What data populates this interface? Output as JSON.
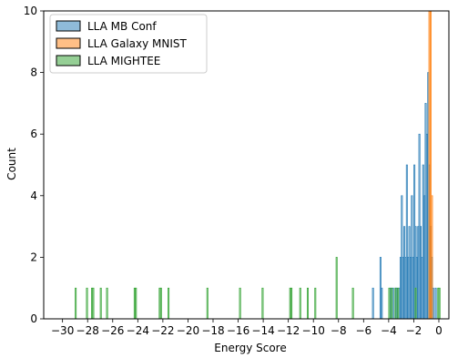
{
  "chart_data": {
    "type": "histogram",
    "xlabel": "Energy Score",
    "ylabel": "Count",
    "xlim": [
      -31.5,
      0.8
    ],
    "ylim": [
      0,
      10
    ],
    "xticks": [
      -30,
      -28,
      -26,
      -24,
      -22,
      -20,
      -18,
      -16,
      -14,
      -12,
      -10,
      -8,
      -6,
      -4,
      -2,
      0
    ],
    "yticks": [
      0,
      2,
      4,
      6,
      8,
      10
    ],
    "xtick_labels": [
      "−30",
      "−28",
      "−26",
      "−24",
      "−22",
      "−20",
      "−18",
      "−16",
      "−14",
      "−12",
      "−10",
      "−8",
      "−6",
      "−4",
      "−2",
      "0"
    ],
    "ytick_labels": [
      "0",
      "2",
      "4",
      "6",
      "8",
      "10"
    ],
    "bin_width": 0.1,
    "legend": {
      "position": "top-left"
    },
    "series": [
      {
        "name": "LLA MB Conf",
        "color": "#1f77b4",
        "bars": [
          [
            -5.3,
            1
          ],
          [
            -4.7,
            2
          ],
          [
            -4.6,
            1
          ],
          [
            -3.9,
            1
          ],
          [
            -3.7,
            1
          ],
          [
            -3.5,
            1
          ],
          [
            -3.4,
            1
          ],
          [
            -3.2,
            1
          ],
          [
            -3.1,
            2
          ],
          [
            -3.0,
            4
          ],
          [
            -2.9,
            2
          ],
          [
            -2.8,
            3
          ],
          [
            -2.7,
            2
          ],
          [
            -2.6,
            5
          ],
          [
            -2.5,
            2
          ],
          [
            -2.4,
            3
          ],
          [
            -2.3,
            2
          ],
          [
            -2.2,
            4
          ],
          [
            -2.1,
            2
          ],
          [
            -2.0,
            5
          ],
          [
            -1.9,
            3
          ],
          [
            -1.8,
            2
          ],
          [
            -1.7,
            3
          ],
          [
            -1.6,
            6
          ],
          [
            -1.5,
            3
          ],
          [
            -1.4,
            2
          ],
          [
            -1.3,
            5
          ],
          [
            -1.2,
            4
          ],
          [
            -1.1,
            7
          ],
          [
            -1.0,
            6
          ],
          [
            -0.9,
            8
          ],
          [
            -0.8,
            5
          ],
          [
            -0.7,
            3
          ],
          [
            -0.6,
            2
          ],
          [
            -0.5,
            1
          ],
          [
            -0.3,
            1
          ]
        ]
      },
      {
        "name": "LLA Galaxy MNIST",
        "color": "#ff7f0e",
        "bars": [
          [
            -0.8,
            10
          ],
          [
            -0.7,
            10
          ],
          [
            -0.6,
            4
          ]
        ]
      },
      {
        "name": "LLA MIGHTEE",
        "color": "#2ca02c",
        "bars": [
          [
            -29.0,
            1
          ],
          [
            -28.1,
            1
          ],
          [
            -27.7,
            1
          ],
          [
            -27.6,
            1
          ],
          [
            -27.0,
            1
          ],
          [
            -26.5,
            1
          ],
          [
            -24.3,
            1
          ],
          [
            -24.2,
            1
          ],
          [
            -22.3,
            1
          ],
          [
            -22.2,
            1
          ],
          [
            -21.6,
            1
          ],
          [
            -18.5,
            1
          ],
          [
            -15.9,
            1
          ],
          [
            -14.1,
            1
          ],
          [
            -11.9,
            1
          ],
          [
            -11.8,
            1
          ],
          [
            -11.1,
            1
          ],
          [
            -10.5,
            1
          ],
          [
            -9.9,
            1
          ],
          [
            -8.2,
            2
          ],
          [
            -6.9,
            1
          ],
          [
            -4.0,
            1
          ],
          [
            -3.8,
            1
          ],
          [
            -3.5,
            1
          ],
          [
            -3.3,
            1
          ],
          [
            -1.9,
            1
          ],
          [
            -0.1,
            1
          ],
          [
            0.0,
            1
          ]
        ]
      }
    ]
  }
}
